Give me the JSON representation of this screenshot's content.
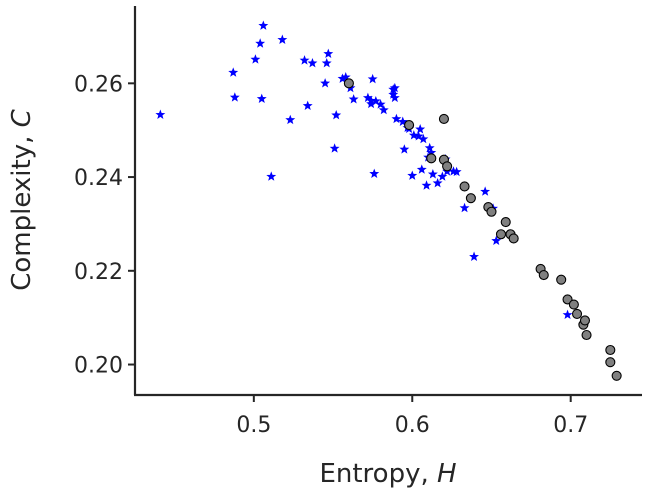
{
  "chart_data": {
    "type": "scatter",
    "xlabel": "Entropy, H",
    "xlabel_parts": {
      "text": "Entropy, ",
      "symbol": "H"
    },
    "ylabel": "Complexity, C",
    "ylabel_parts": {
      "text": "Complexity, ",
      "symbol": "C"
    },
    "xlim": [
      0.425,
      0.745
    ],
    "ylim": [
      0.1935,
      0.2765
    ],
    "xticks": [
      {
        "value": 0.5,
        "label": "0.5"
      },
      {
        "value": 0.6,
        "label": "0.6"
      },
      {
        "value": 0.7,
        "label": "0.7"
      }
    ],
    "yticks": [
      {
        "value": 0.2,
        "label": "0.20"
      },
      {
        "value": 0.22,
        "label": "0.22"
      },
      {
        "value": 0.24,
        "label": "0.24"
      },
      {
        "value": 0.26,
        "label": "0.26"
      }
    ],
    "grid": false,
    "series": [
      {
        "marker": "star",
        "color": "#0000ff",
        "points": [
          [
            0.441,
            0.2533
          ],
          [
            0.487,
            0.2623
          ],
          [
            0.488,
            0.257
          ],
          [
            0.501,
            0.2651
          ],
          [
            0.504,
            0.2685
          ],
          [
            0.506,
            0.2723
          ],
          [
            0.505,
            0.2567
          ],
          [
            0.511,
            0.2401
          ],
          [
            0.518,
            0.2693
          ],
          [
            0.523,
            0.2522
          ],
          [
            0.532,
            0.2649
          ],
          [
            0.534,
            0.2552
          ],
          [
            0.537,
            0.2643
          ],
          [
            0.546,
            0.2643
          ],
          [
            0.547,
            0.2663
          ],
          [
            0.545,
            0.26
          ],
          [
            0.551,
            0.2461
          ],
          [
            0.552,
            0.2532
          ],
          [
            0.556,
            0.261
          ],
          [
            0.558,
            0.2613
          ],
          [
            0.561,
            0.259
          ],
          [
            0.563,
            0.2566
          ],
          [
            0.572,
            0.2569
          ],
          [
            0.574,
            0.2556
          ],
          [
            0.575,
            0.2609
          ],
          [
            0.574,
            0.2563
          ],
          [
            0.576,
            0.2407
          ],
          [
            0.577,
            0.2562
          ],
          [
            0.58,
            0.2555
          ],
          [
            0.582,
            0.2543
          ],
          [
            0.588,
            0.2576
          ],
          [
            0.588,
            0.2587
          ],
          [
            0.589,
            0.2569
          ],
          [
            0.589,
            0.259
          ],
          [
            0.59,
            0.2524
          ],
          [
            0.594,
            0.2518
          ],
          [
            0.595,
            0.2459
          ],
          [
            0.597,
            0.2505
          ],
          [
            0.598,
            0.2503
          ],
          [
            0.6,
            0.2403
          ],
          [
            0.601,
            0.2489
          ],
          [
            0.604,
            0.2487
          ],
          [
            0.605,
            0.2502
          ],
          [
            0.606,
            0.2416
          ],
          [
            0.607,
            0.2481
          ],
          [
            0.609,
            0.2382
          ],
          [
            0.61,
            0.2442
          ],
          [
            0.611,
            0.2462
          ],
          [
            0.612,
            0.2452
          ],
          [
            0.613,
            0.2406
          ],
          [
            0.616,
            0.2387
          ],
          [
            0.619,
            0.2401
          ],
          [
            0.621,
            0.2438
          ],
          [
            0.622,
            0.2412
          ],
          [
            0.626,
            0.2412
          ],
          [
            0.628,
            0.2411
          ],
          [
            0.633,
            0.2334
          ],
          [
            0.639,
            0.223
          ],
          [
            0.646,
            0.2369
          ],
          [
            0.651,
            0.2333
          ],
          [
            0.653,
            0.2264
          ],
          [
            0.698,
            0.2106
          ]
        ]
      },
      {
        "marker": "circle",
        "color": "#808080",
        "edgecolor": "#000000",
        "points": [
          [
            0.56,
            0.26
          ],
          [
            0.598,
            0.2511
          ],
          [
            0.62,
            0.2524
          ],
          [
            0.612,
            0.244
          ],
          [
            0.62,
            0.2437
          ],
          [
            0.622,
            0.2423
          ],
          [
            0.633,
            0.238
          ],
          [
            0.637,
            0.2355
          ],
          [
            0.648,
            0.2336
          ],
          [
            0.65,
            0.2326
          ],
          [
            0.656,
            0.2278
          ],
          [
            0.659,
            0.2304
          ],
          [
            0.662,
            0.2278
          ],
          [
            0.664,
            0.2269
          ],
          [
            0.681,
            0.2204
          ],
          [
            0.683,
            0.2191
          ],
          [
            0.694,
            0.2181
          ],
          [
            0.698,
            0.2139
          ],
          [
            0.702,
            0.2128
          ],
          [
            0.704,
            0.2108
          ],
          [
            0.708,
            0.2085
          ],
          [
            0.709,
            0.2094
          ],
          [
            0.71,
            0.2063
          ],
          [
            0.725,
            0.2031
          ],
          [
            0.725,
            0.2005
          ],
          [
            0.729,
            0.1976
          ]
        ]
      }
    ]
  }
}
